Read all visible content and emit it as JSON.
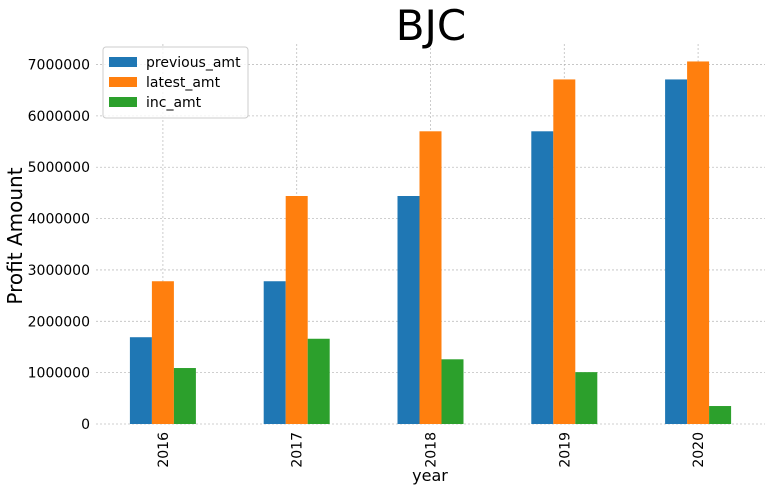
{
  "chart_data": {
    "type": "bar",
    "title": "BJC",
    "xlabel": "year",
    "ylabel": "Profit Amount",
    "categories": [
      "2016",
      "2017",
      "2018",
      "2019",
      "2020"
    ],
    "series": [
      {
        "name": "previous_amt",
        "color": "#1f77b4",
        "values": [
          1690000,
          2780000,
          4440000,
          5700000,
          6710000
        ]
      },
      {
        "name": "latest_amt",
        "color": "#ff7f0e",
        "values": [
          2780000,
          4440000,
          5700000,
          6710000,
          7060000
        ]
      },
      {
        "name": "inc_amt",
        "color": "#2ca02c",
        "values": [
          1090000,
          1660000,
          1260000,
          1010000,
          350000
        ]
      }
    ],
    "ylim": [
      0,
      7400000
    ],
    "yticks": [
      "0",
      "1000000",
      "2000000",
      "3000000",
      "4000000",
      "5000000",
      "6000000",
      "7000000"
    ],
    "grid": true,
    "legend_position": "top-left"
  }
}
